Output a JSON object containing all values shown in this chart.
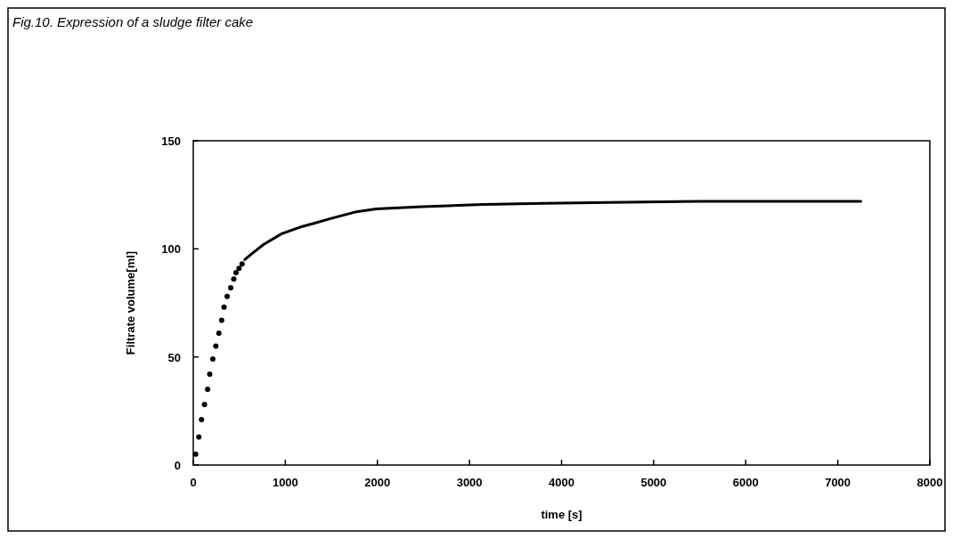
{
  "chart_data": {
    "type": "line",
    "title": "Fig.10. Expression of a sludge filter cake",
    "xlabel": "time [s]",
    "ylabel": "Filtrate volume[ml]",
    "xlim": [
      0,
      8000
    ],
    "xticks": [
      0,
      1000,
      2000,
      3000,
      4000,
      5000,
      6000,
      7000,
      8000
    ],
    "ylim": [
      0,
      150
    ],
    "yticks": [
      0,
      50,
      100,
      150
    ],
    "grid": false,
    "series": [
      {
        "type": "scatter",
        "marker": "circle",
        "color": "#000000",
        "x": [
          26,
          60,
          89,
          122,
          156,
          179,
          212,
          245,
          278,
          308,
          334,
          368,
          407,
          440,
          464,
          497,
          530
        ],
        "values": [
          5,
          13,
          21,
          28,
          35,
          42,
          49,
          55,
          61,
          67,
          73,
          78,
          82,
          86,
          89,
          91,
          93
        ]
      },
      {
        "type": "line",
        "marker": "none",
        "line_style": "solid",
        "color": "#000000",
        "x": [
          560,
          629,
          762,
          960,
          1159,
          1325,
          1490,
          1755,
          1987,
          2483,
          3146,
          3808,
          4500,
          5500,
          6500,
          7250
        ],
        "values": [
          95,
          97.5,
          102,
          107,
          110,
          112,
          114,
          117,
          118.5,
          119.5,
          120.5,
          121,
          121.5,
          122,
          122,
          122
        ]
      }
    ]
  }
}
